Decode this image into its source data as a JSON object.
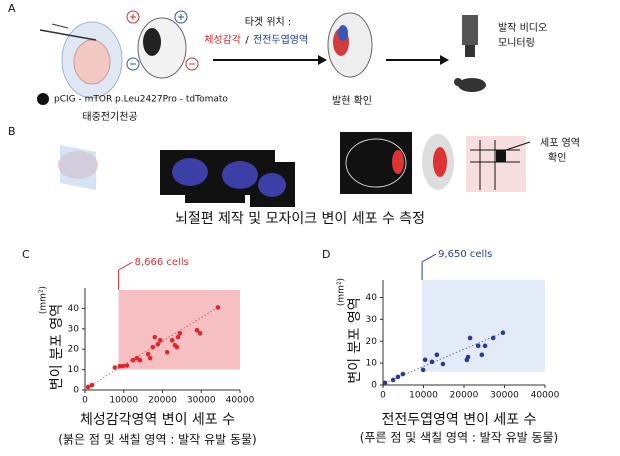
{
  "panel_a": {
    "label": "A",
    "target_title": "타겟 위치 :",
    "target_1": "체성감각",
    "separator": "/",
    "target_2": "전전두엽영역",
    "monitor_1": "발작 비디오",
    "monitor_2": "모니터링",
    "construct": "pCIG - mTOR p.Leu2427Pro - tdTomato",
    "electroporation": "태중전기천공",
    "expression": "발현 확인"
  },
  "panel_b": {
    "label": "B",
    "cell_area_1": "세포 영역",
    "cell_area_2": "확인",
    "caption": "뇌절편 제작 및 모자이크 변이 세포 수 측정"
  },
  "chart_data": [
    {
      "type": "scatter",
      "panel_label": "C",
      "y_unit": "(mm²)",
      "ylabel": "변이 분포 영역",
      "xlabel": "체성감각영역 변이 세포 수",
      "caption": "(붉은 점 및 색칠 영역 : 발작 유발 동물)",
      "x": [
        800,
        1800,
        7700,
        9000,
        9800,
        10800,
        12400,
        13400,
        14200,
        16300,
        16800,
        17500,
        18000,
        18800,
        19400,
        21200,
        22500,
        23200,
        23700,
        24000,
        24500,
        28900,
        29700,
        34300
      ],
      "series": [
        {
          "color": "#e0262d",
          "values": [
            1.5,
            2.4,
            11,
            11.7,
            11.7,
            12,
            14.6,
            15.6,
            14.6,
            17.6,
            15.6,
            21,
            25.9,
            22.4,
            24.4,
            18.5,
            24.4,
            22,
            21,
            25.9,
            27.8,
            29.3,
            27.8,
            40.5
          ]
        }
      ],
      "annotation": {
        "value": 8666,
        "label": "8,666 cells"
      },
      "annotation_color": "#d9303a",
      "highlight_ylim": [
        10,
        49
      ],
      "highlight_color": "#f5b5b8",
      "xlim": [
        0,
        40000
      ],
      "ylim": [
        0,
        50
      ],
      "xticks": [
        0,
        10000,
        20000,
        30000,
        40000
      ],
      "yticks": [
        0,
        10,
        20,
        30,
        40
      ]
    },
    {
      "type": "scatter",
      "panel_label": "D",
      "y_unit": "(mm²)",
      "ylabel": "변이 분포 영역",
      "xlabel": "전전두엽영역 변이 세포 수",
      "caption": "(푸른 점 및 색칠 영역 : 발작 유발 동물)",
      "x": [
        500,
        2500,
        3700,
        4900,
        9900,
        10400,
        12100,
        13300,
        14800,
        20700,
        21000,
        21500,
        23500,
        24400,
        25200,
        27200,
        29600
      ],
      "series": [
        {
          "color": "#2d3a8e",
          "values": [
            1,
            2.3,
            3.7,
            5,
            6.9,
            11.5,
            10.6,
            13.8,
            9.6,
            11.5,
            12.8,
            21.5,
            17.9,
            13.8,
            17.9,
            21.5,
            23.9
          ]
        }
      ],
      "annotation": {
        "value": 9650,
        "label": "9,650 cells"
      },
      "annotation_color": "#2d3a8e",
      "highlight_ylim": [
        6,
        48
      ],
      "highlight_color": "#dde8f6",
      "xlim": [
        0,
        40000
      ],
      "ylim": [
        0,
        48
      ],
      "xticks": [
        0,
        10000,
        20000,
        30000,
        40000
      ],
      "yticks": [
        0,
        10,
        20,
        30,
        40
      ]
    }
  ]
}
